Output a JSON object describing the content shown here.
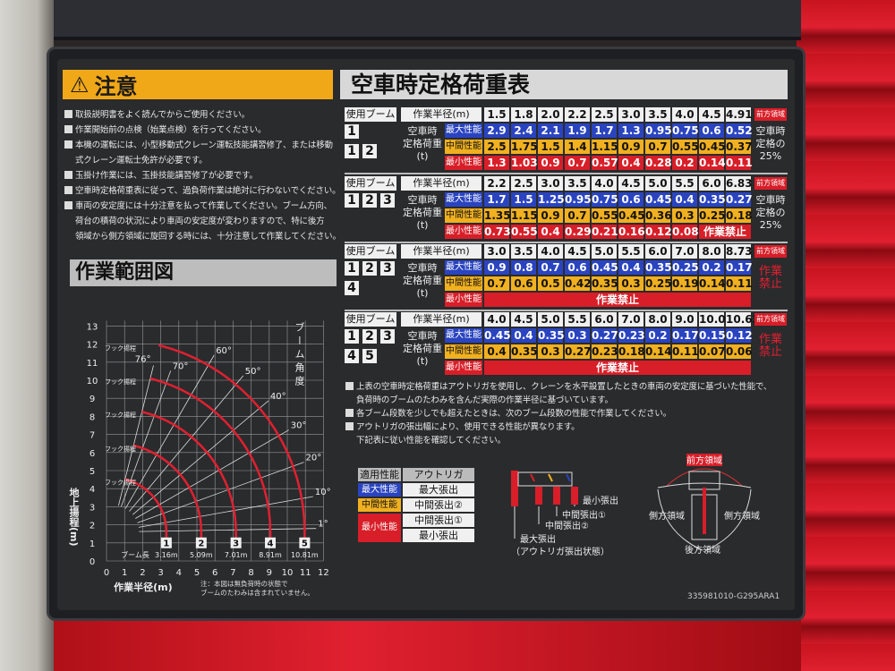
{
  "caution": {
    "icon": "warning-icon",
    "title": "注意",
    "notes": [
      {
        "text": "取扱説明書をよく読んでからご使用ください。"
      },
      {
        "text": "作業開始前の点検（始業点検）を行ってください。"
      },
      {
        "text": "本機の運転には、小型移動式クレーン運転技能講習修了、または移動",
        "cont": "式クレーン運転士免許が必要です。"
      },
      {
        "text": "玉掛け作業には、玉掛技能講習修了が必要です。"
      },
      {
        "text": "空車時定格荷重表に従って、過負荷作業は絶対に行わないでください。"
      },
      {
        "text": "車両の安定度には十分注意を払って作業してください。ブーム方向、",
        "cont": "荷台の積荷の状況により車両の安定度が変わりますので、特に後方",
        "cont2": "領域から側方領域に旋回する時には、十分注意して作業してください。"
      }
    ]
  },
  "load_chart": {
    "title": "空車時定格荷重表",
    "boom_label": "使用ブーム",
    "radius_label": "作業半径(m)",
    "row_label": [
      "空車時",
      "定格荷重",
      "(t)"
    ],
    "perf_labels": [
      "最大性能",
      "中間性能",
      "最小性能"
    ],
    "front_badge": "前方領域",
    "colors": {
      "max": "#2a44c0",
      "mid": "#f0b020",
      "min": "#d81e28"
    },
    "tables": [
      {
        "booms": [
          [
            "1"
          ],
          [
            "1",
            "2"
          ]
        ],
        "radius": [
          "1.5",
          "1.8",
          "2.0",
          "2.2",
          "2.5",
          "3.0",
          "3.5",
          "4.0",
          "4.5",
          "4.91"
        ],
        "max": [
          "2.9",
          "2.4",
          "2.1",
          "1.9",
          "1.7",
          "1.3",
          "0.95",
          "0.75",
          "0.6",
          "0.52"
        ],
        "mid": [
          "2.5",
          "1.75",
          "1.5",
          "1.4",
          "1.15",
          "0.9",
          "0.7",
          "0.55",
          "0.45",
          "0.37"
        ],
        "min": [
          "1.3",
          "1.03",
          "0.9",
          "0.7",
          "0.57",
          "0.4",
          "0.28",
          "0.2",
          "0.14",
          "0.11"
        ],
        "side_note": [
          "空車時",
          "定格の",
          "25%"
        ],
        "side_red": false
      },
      {
        "booms": [
          [
            "1",
            "2",
            "3"
          ]
        ],
        "radius": [
          "2.2",
          "2.5",
          "3.0",
          "3.5",
          "4.0",
          "4.5",
          "5.0",
          "5.5",
          "6.0",
          "6.83"
        ],
        "max": [
          "1.7",
          "1.5",
          "1.25",
          "0.95",
          "0.75",
          "0.6",
          "0.45",
          "0.4",
          "0.35",
          "0.27"
        ],
        "mid": [
          "1.35",
          "1.15",
          "0.9",
          "0.7",
          "0.55",
          "0.45",
          "0.36",
          "0.3",
          "0.25",
          "0.18"
        ],
        "min": [
          "0.73",
          "0.55",
          "0.4",
          "0.29",
          "0.21",
          "0.16",
          "0.12",
          "0.08"
        ],
        "min_prohibited": "作業禁止",
        "side_note": [
          "空車時",
          "定格の",
          "25%"
        ],
        "side_red": false
      },
      {
        "booms": [
          [
            "1",
            "2",
            "3"
          ],
          [
            "4"
          ]
        ],
        "radius": [
          "3.0",
          "3.5",
          "4.0",
          "4.5",
          "5.0",
          "5.5",
          "6.0",
          "7.0",
          "8.0",
          "8.73"
        ],
        "max": [
          "0.9",
          "0.8",
          "0.7",
          "0.6",
          "0.45",
          "0.4",
          "0.35",
          "0.25",
          "0.2",
          "0.17"
        ],
        "mid": [
          "0.7",
          "0.6",
          "0.5",
          "0.42",
          "0.35",
          "0.3",
          "0.25",
          "0.19",
          "0.14",
          "0.11"
        ],
        "min": [],
        "min_prohibited": "作業禁止",
        "side_note": [
          "作業",
          "禁止"
        ],
        "side_red": true
      },
      {
        "booms": [
          [
            "1",
            "2",
            "3"
          ],
          [
            "4",
            "5"
          ]
        ],
        "radius": [
          "4.0",
          "4.5",
          "5.0",
          "5.5",
          "6.0",
          "7.0",
          "8.0",
          "9.0",
          "10.0",
          "10.63"
        ],
        "max": [
          "0.45",
          "0.4",
          "0.35",
          "0.3",
          "0.27",
          "0.23",
          "0.2",
          "0.17",
          "0.15",
          "0.12"
        ],
        "mid": [
          "0.4",
          "0.35",
          "0.3",
          "0.27",
          "0.23",
          "0.18",
          "0.14",
          "0.11",
          "0.07",
          "0.06"
        ],
        "min": [],
        "min_prohibited": "作業禁止",
        "side_note": [
          "作業",
          "禁止"
        ],
        "side_red": true
      }
    ]
  },
  "notes": [
    {
      "text": "上表の空車時定格荷重はアウトリガを使用し、クレーンを水平設置したときの車両の安定度に基づいた性能で、",
      "cont": "負荷時のブームのたわみを含んだ実際の作業半径に基づいています。"
    },
    {
      "text": "各ブーム段数を少しでも超えたときは、次のブーム段数の性能で作業してください。"
    },
    {
      "text": "アウトリガの張出幅により、使用できる性能が異なります。",
      "cont": "下記表に従い性能を確認してください。"
    }
  ],
  "outrigger_legend": {
    "headers": [
      "適用性能",
      "アウトリガ"
    ],
    "rows": [
      {
        "perf": "最大性能",
        "ext": [
          "最大張出"
        ]
      },
      {
        "perf": "中間性能",
        "ext": [
          "中間張出②"
        ]
      },
      {
        "perf": "最小性能",
        "ext": [
          "中間張出①",
          "最小張出"
        ]
      }
    ]
  },
  "outrigger_diagram": {
    "labels": [
      "最小張出",
      "中間張出①",
      "中間張出②",
      "最大張出"
    ],
    "caption": "（アウトリガ張出状態）"
  },
  "area_diagram": {
    "front": "前方領域",
    "side_left": "側方領域",
    "side_right": "側方領域",
    "rear": "後方領域"
  },
  "working_range": {
    "title": "作業範囲図",
    "x_label": "作業半径(m)",
    "y_label": "地上揚程(m)",
    "x_ticks": [
      "0",
      "1",
      "2",
      "3",
      "4",
      "5",
      "6",
      "7",
      "8",
      "9",
      "10",
      "11",
      "12"
    ],
    "y_ticks": [
      "0",
      "1",
      "2",
      "3",
      "4",
      "5",
      "6",
      "7",
      "8",
      "9",
      "10",
      "11",
      "12",
      "13"
    ],
    "angle_label": "ブーム角度",
    "angles": [
      "1°",
      "10°",
      "20°",
      "30°",
      "40°",
      "50°",
      "60°",
      "70°",
      "76°"
    ],
    "boom_length_label": "ブーム長",
    "hook_label": "フック揚程",
    "booms": [
      {
        "n": "1",
        "len": "3.16m"
      },
      {
        "n": "2",
        "len": "5.09m"
      },
      {
        "n": "3",
        "len": "7.01m"
      },
      {
        "n": "4",
        "len": "8.91m"
      },
      {
        "n": "5",
        "len": "10.81m"
      }
    ],
    "note": [
      "注：本図は無負荷時の状態で",
      "ブームのたわみは含まれていません。"
    ]
  },
  "part_number": "335981010-G295ARA1"
}
